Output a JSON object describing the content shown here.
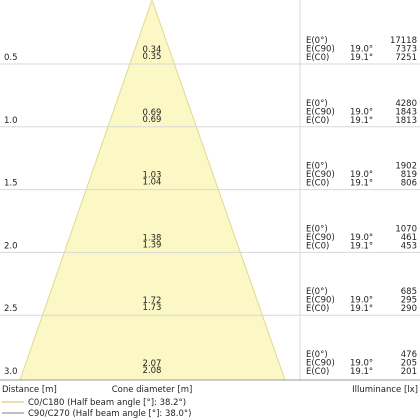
{
  "labels": {
    "e0": "E(0°)",
    "c90": "E(C90)",
    "c0": "E(C0)"
  },
  "rows": [
    {
      "distance": "0.5",
      "diameter_c90": "0.34",
      "diameter_c0": "0.35",
      "e0": "17118",
      "angle_c90": "19.0°",
      "e_c90": "7373",
      "angle_c0": "19.1°",
      "e_c0": "7251"
    },
    {
      "distance": "1.0",
      "diameter_c90": "0.69",
      "diameter_c0": "0.69",
      "e0": "4280",
      "angle_c90": "19.0°",
      "e_c90": "1843",
      "angle_c0": "19.1°",
      "e_c0": "1813"
    },
    {
      "distance": "1.5",
      "diameter_c90": "1.03",
      "diameter_c0": "1.04",
      "e0": "1902",
      "angle_c90": "19.0°",
      "e_c90": "819",
      "angle_c0": "19.1°",
      "e_c0": "806"
    },
    {
      "distance": "2.0",
      "diameter_c90": "1.38",
      "diameter_c0": "1.39",
      "e0": "1070",
      "angle_c90": "19.0°",
      "e_c90": "461",
      "angle_c0": "19.1°",
      "e_c0": "453"
    },
    {
      "distance": "2.5",
      "diameter_c90": "1.72",
      "diameter_c0": "1.73",
      "e0": "685",
      "angle_c90": "19.0°",
      "e_c90": "295",
      "angle_c0": "19.1°",
      "e_c0": "290"
    },
    {
      "distance": "3.0",
      "diameter_c90": "2.07",
      "diameter_c0": "2.08",
      "e0": "476",
      "angle_c90": "19.0°",
      "e_c90": "205",
      "angle_c0": "19.1°",
      "e_c0": "201"
    }
  ],
  "footer": {
    "distance": "Distance [m]",
    "diameter": "Cone diameter [m]",
    "illuminance": "Illuminance [lx]"
  },
  "legend": [
    "C0/C180 (Half beam angle [°]: 38.2°)",
    "C90/C270 (Half beam angle [°]: 38.0°)"
  ]
}
